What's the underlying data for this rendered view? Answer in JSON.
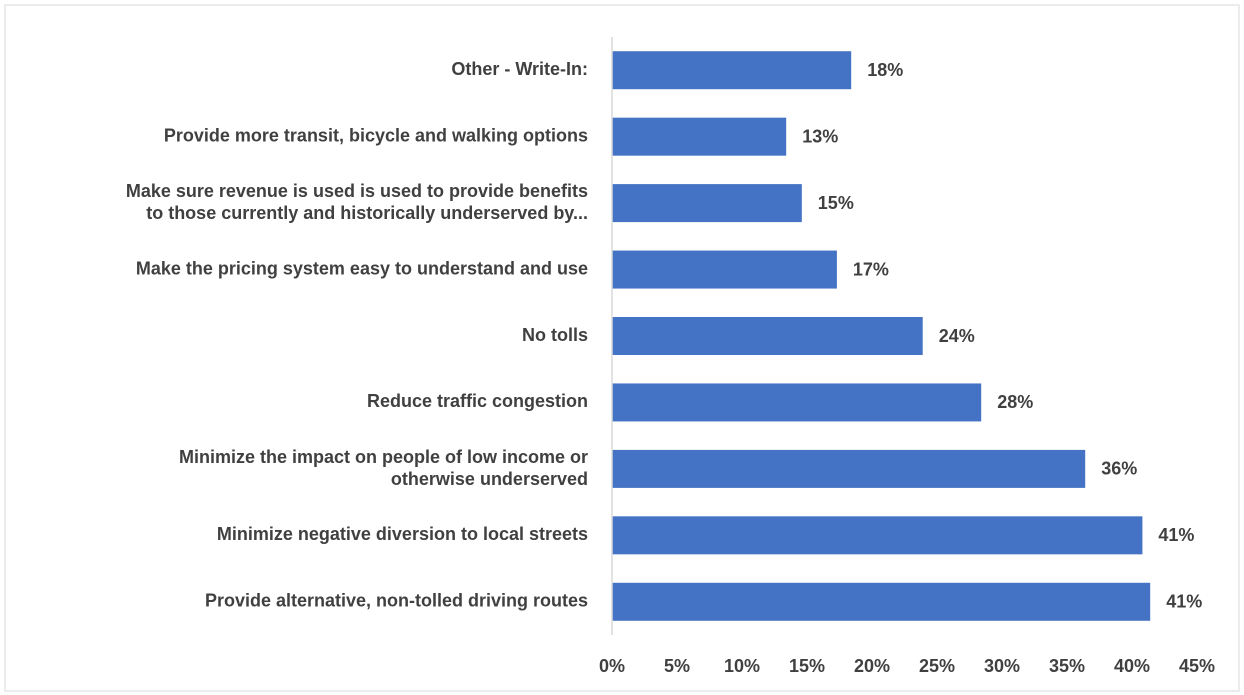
{
  "chart_data": {
    "type": "bar",
    "orientation": "horizontal",
    "categories": [
      "Other - Write-In:",
      "Provide more transit, bicycle and walking options",
      "Make sure revenue is used is used to provide benefits\nto those currently and historically underserved by...",
      "Make the pricing system easy to understand and use",
      "No tolls",
      "Reduce traffic congestion",
      "Minimize the impact on people of low income or\notherwise underserved",
      "Minimize negative diversion to local streets",
      "Provide alternative, non-tolled driving routes"
    ],
    "values": [
      18.4,
      13.4,
      14.6,
      17.3,
      23.9,
      28.4,
      36.4,
      40.8,
      41.4
    ],
    "value_labels": [
      "18%",
      "13%",
      "15%",
      "17%",
      "24%",
      "28%",
      "36%",
      "41%",
      "41%"
    ],
    "color": "#4472c4",
    "xlim": [
      0,
      45
    ],
    "xticks": [
      {
        "value": 0,
        "label": "0%"
      },
      {
        "value": 5,
        "label": "5%"
      },
      {
        "value": 10,
        "label": "10%"
      },
      {
        "value": 15,
        "label": "15%"
      },
      {
        "value": 20,
        "label": "20%"
      },
      {
        "value": 25,
        "label": "25%"
      },
      {
        "value": 30,
        "label": "30%"
      },
      {
        "value": 35,
        "label": "35%"
      },
      {
        "value": 40,
        "label": "40%"
      },
      {
        "value": 45,
        "label": "45%"
      }
    ],
    "grid": false
  }
}
